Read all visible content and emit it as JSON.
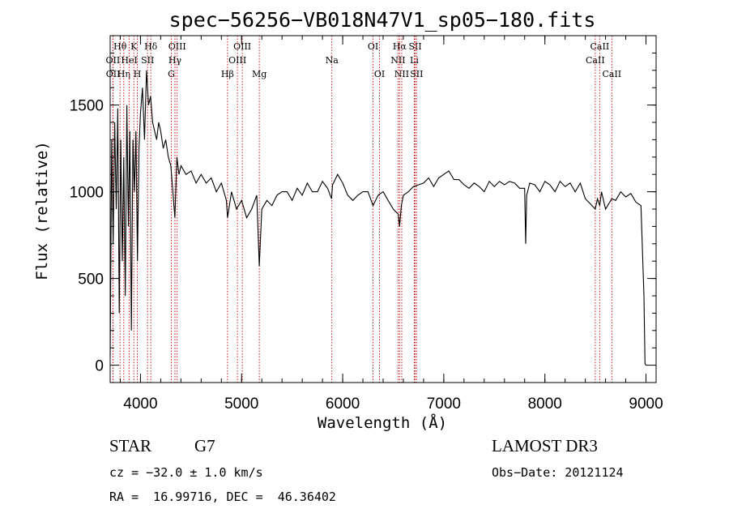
{
  "chart_data": {
    "type": "line",
    "title": "spec−56256−VB018N47V1_sp05−180.fits",
    "xlabel": "Wavelength (Å)",
    "ylabel": "Flux (relative)",
    "xlim": [
      3700,
      9100
    ],
    "ylim": [
      -100,
      1900
    ],
    "xticks": [
      4000,
      5000,
      6000,
      7000,
      8000,
      9000
    ],
    "yticks": [
      0,
      500,
      1000,
      1500
    ],
    "series": [
      {
        "name": "flux",
        "x": [
          3700,
          3715,
          3730,
          3745,
          3760,
          3775,
          3790,
          3805,
          3820,
          3835,
          3850,
          3865,
          3880,
          3895,
          3910,
          3925,
          3940,
          3955,
          3970,
          3985,
          4000,
          4020,
          4040,
          4060,
          4080,
          4100,
          4120,
          4140,
          4160,
          4180,
          4200,
          4225,
          4250,
          4275,
          4300,
          4320,
          4340,
          4360,
          4380,
          4400,
          4450,
          4500,
          4550,
          4600,
          4650,
          4700,
          4750,
          4800,
          4850,
          4861,
          4900,
          4950,
          5000,
          5050,
          5100,
          5150,
          5175,
          5200,
          5250,
          5300,
          5350,
          5400,
          5450,
          5500,
          5550,
          5600,
          5650,
          5700,
          5750,
          5800,
          5850,
          5890,
          5900,
          5950,
          6000,
          6050,
          6100,
          6150,
          6200,
          6250,
          6300,
          6350,
          6400,
          6450,
          6500,
          6550,
          6563,
          6580,
          6600,
          6650,
          6700,
          6750,
          6800,
          6850,
          6900,
          6950,
          7000,
          7050,
          7100,
          7150,
          7200,
          7250,
          7300,
          7350,
          7400,
          7450,
          7500,
          7550,
          7600,
          7650,
          7700,
          7750,
          7800,
          7810,
          7820,
          7850,
          7900,
          7950,
          8000,
          8050,
          8100,
          8150,
          8200,
          8250,
          8300,
          8350,
          8400,
          8450,
          8498,
          8520,
          8542,
          8560,
          8600,
          8662,
          8700,
          8750,
          8800,
          8850,
          8900,
          8950,
          8980,
          8990,
          9000,
          9005,
          9010
        ],
        "y": [
          50,
          1300,
          700,
          1400,
          900,
          1480,
          300,
          1300,
          600,
          1200,
          400,
          1500,
          800,
          1350,
          200,
          1300,
          1000,
          1350,
          600,
          1250,
          1450,
          1600,
          1300,
          1700,
          1500,
          1550,
          1400,
          1350,
          1300,
          1400,
          1350,
          1250,
          1300,
          1200,
          1150,
          1000,
          850,
          1200,
          1100,
          1150,
          1100,
          1120,
          1050,
          1100,
          1050,
          1080,
          1000,
          1050,
          950,
          850,
          1000,
          900,
          950,
          850,
          900,
          980,
          570,
          900,
          950,
          920,
          980,
          1000,
          1000,
          950,
          1020,
          980,
          1050,
          1000,
          1000,
          1060,
          1020,
          960,
          1040,
          1100,
          1050,
          980,
          950,
          980,
          1000,
          1000,
          920,
          980,
          1000,
          950,
          900,
          870,
          800,
          920,
          980,
          1000,
          1030,
          1040,
          1050,
          1080,
          1030,
          1080,
          1100,
          1120,
          1070,
          1070,
          1040,
          1020,
          1050,
          1030,
          1000,
          1060,
          1030,
          1060,
          1040,
          1060,
          1050,
          1020,
          1020,
          700,
          980,
          1050,
          1040,
          1000,
          1060,
          1040,
          1000,
          1060,
          1030,
          1050,
          1000,
          1050,
          960,
          930,
          900,
          960,
          920,
          1000,
          900,
          960,
          950,
          1000,
          970,
          990,
          940,
          920,
          400,
          10,
          0,
          0,
          0
        ],
        "color": "#000000"
      }
    ],
    "line_markers": [
      {
        "label": "Hθ",
        "wavelength": 3798,
        "row": 1
      },
      {
        "label": "OII",
        "wavelength": 3727,
        "row": 2
      },
      {
        "label": "OII",
        "wavelength": 3729,
        "row": 3
      },
      {
        "label": "Hη",
        "wavelength": 3835,
        "row": 3
      },
      {
        "label": "HeI",
        "wavelength": 3889,
        "row": 2
      },
      {
        "label": "K",
        "wavelength": 3934,
        "row": 1
      },
      {
        "label": "H",
        "wavelength": 3969,
        "row": 3
      },
      {
        "label": "SII",
        "wavelength": 4070,
        "row": 2
      },
      {
        "label": "Hδ",
        "wavelength": 4102,
        "row": 1
      },
      {
        "label": "OIII",
        "wavelength": 4363,
        "row": 1
      },
      {
        "label": "Hγ",
        "wavelength": 4341,
        "row": 2
      },
      {
        "label": "G",
        "wavelength": 4305,
        "row": 3
      },
      {
        "label": "Hβ",
        "wavelength": 4861,
        "row": 3
      },
      {
        "label": "OIII",
        "wavelength": 5007,
        "row": 1
      },
      {
        "label": "OIII",
        "wavelength": 4959,
        "row": 2
      },
      {
        "label": "Mg",
        "wavelength": 5175,
        "row": 3
      },
      {
        "label": "Na",
        "wavelength": 5893,
        "row": 2
      },
      {
        "label": "OI",
        "wavelength": 6300,
        "row": 1
      },
      {
        "label": "OI",
        "wavelength": 6364,
        "row": 3
      },
      {
        "label": "Hα",
        "wavelength": 6563,
        "row": 1
      },
      {
        "label": "NII",
        "wavelength": 6548,
        "row": 2
      },
      {
        "label": "NII",
        "wavelength": 6584,
        "row": 3
      },
      {
        "label": "SII",
        "wavelength": 6717,
        "row": 1
      },
      {
        "label": "Li",
        "wavelength": 6708,
        "row": 2
      },
      {
        "label": "SII",
        "wavelength": 6731,
        "row": 3
      },
      {
        "label": "CaII",
        "wavelength": 8542,
        "row": 1
      },
      {
        "label": "CaII",
        "wavelength": 8498,
        "row": 2
      },
      {
        "label": "CaII",
        "wavelength": 8662,
        "row": 3
      }
    ],
    "grid": false
  },
  "info": {
    "object_class": "STAR",
    "subclass": "G7",
    "survey": "LAMOST DR3",
    "redshift": "cz = −32.0 ± 1.0 km/s",
    "obs_date": "Obs−Date: 20121124",
    "coords": "RA =  16.99716, DEC =  46.36402"
  }
}
